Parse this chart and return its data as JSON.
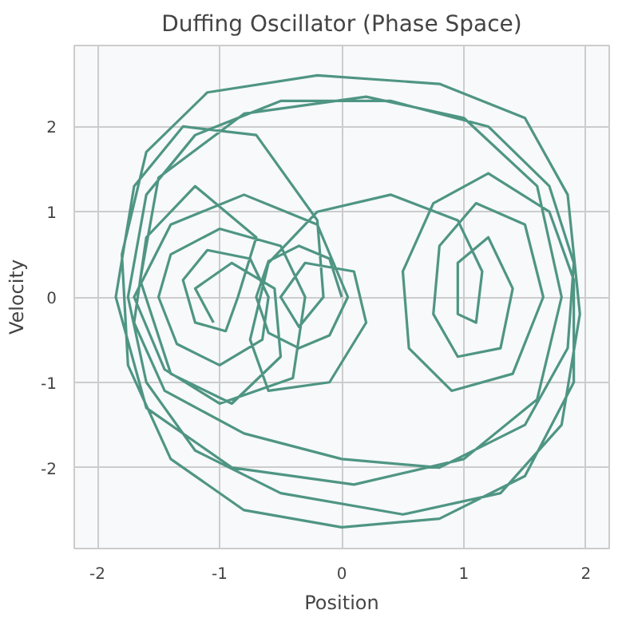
{
  "chart_data": {
    "type": "line",
    "title": "Duffing Oscillator (Phase Space)",
    "xlabel": "Position",
    "ylabel": "Velocity",
    "xlim": [
      -2.19,
      2.19
    ],
    "ylim": [
      -2.95,
      2.95
    ],
    "xticks": [
      -2,
      -1,
      0,
      1,
      2
    ],
    "yticks": [
      -2,
      -1,
      0,
      1,
      2
    ],
    "grid": true,
    "series": [
      {
        "color": "#4f9583",
        "x": [
          0,
          -0.1,
          -0.35,
          -0.6,
          -0.7,
          -0.6,
          -0.35,
          -0.1,
          0.05,
          -0.2,
          -0.8,
          -1.4,
          -1.7,
          -1.45,
          -1.0,
          -0.4,
          -0.3,
          -0.5,
          -1.0,
          -1.4,
          -1.5,
          -1.35,
          -1.0,
          -0.65,
          -0.6,
          -0.75,
          -1.1,
          -1.3,
          -1.2,
          -0.95,
          -0.85,
          -0.7,
          -1.2,
          -1.6,
          -1.7,
          -1.45,
          -0.8,
          0,
          0.8,
          1.5,
          1.85,
          1.9,
          1.7,
          1.2,
          0.4,
          -0.5,
          -1.2,
          -1.6,
          -1.75,
          -1.6,
          -1.2,
          -0.5,
          0.5,
          1.3,
          1.8,
          1.95,
          1.85,
          1.5,
          0.8,
          -0.2,
          -1.1,
          -1.6,
          -1.8,
          -1.75,
          -1.4,
          -0.8,
          0,
          0.8,
          1.5,
          1.9,
          1.9,
          1.7,
          1.2,
          0.75,
          0.5,
          0.55,
          0.9,
          1.4,
          1.65,
          1.5,
          1.1,
          0.8,
          0.75,
          0.95,
          1.3,
          1.4,
          1.2,
          0.95,
          0.95,
          1.1,
          1.15,
          0.95,
          0.4,
          -0.2,
          -0.6,
          -0.75,
          -0.6,
          -0.1,
          0.2,
          0.1,
          -0.3,
          -0.5,
          -0.35,
          -0.15,
          -0.2,
          -0.7,
          -1.3,
          -1.7,
          -1.85,
          -1.6,
          -0.9,
          0.1,
          1.0,
          1.6,
          1.8,
          1.6,
          1.0,
          0.2,
          -0.8,
          -1.5,
          -1.65,
          -1.4,
          -0.9,
          -0.5,
          -0.55,
          -0.9,
          -1.2,
          -1.05
        ],
        "values": [
          0,
          0.45,
          0.6,
          0.42,
          0,
          -0.42,
          -0.6,
          -0.45,
          0,
          0.85,
          1.2,
          0.85,
          0,
          -0.85,
          -1.25,
          -0.95,
          0,
          0.6,
          0.8,
          0.5,
          0,
          -0.55,
          -0.8,
          -0.5,
          0,
          0.45,
          0.55,
          0.2,
          -0.3,
          -0.4,
          0,
          0.7,
          1.3,
          0.7,
          -0.3,
          -1.1,
          -1.6,
          -1.9,
          -2.0,
          -1.5,
          -0.6,
          0.4,
          1.3,
          2.0,
          2.3,
          2.3,
          1.9,
          1.2,
          0,
          -1.0,
          -1.8,
          -2.3,
          -2.55,
          -2.3,
          -1.5,
          -0.2,
          1.2,
          2.1,
          2.5,
          2.6,
          2.4,
          1.7,
          0.5,
          -0.8,
          -1.9,
          -2.5,
          -2.7,
          -2.6,
          -2.1,
          -1.0,
          0.2,
          1.0,
          1.45,
          1.1,
          0.3,
          -0.6,
          -1.1,
          -0.9,
          0,
          0.85,
          1.1,
          0.6,
          -0.2,
          -0.7,
          -0.6,
          0.1,
          0.7,
          0.4,
          -0.2,
          -0.3,
          0.3,
          0.9,
          1.2,
          1.0,
          0.4,
          -0.5,
          -1.1,
          -1.0,
          -0.3,
          0.3,
          0.4,
          0,
          -0.35,
          0,
          0.9,
          1.9,
          2.0,
          1.3,
          0,
          -1.3,
          -2.0,
          -2.2,
          -1.9,
          -1.2,
          0,
          1.3,
          2.1,
          2.35,
          2.15,
          1.4,
          0.2,
          -0.9,
          -1.25,
          -0.7,
          0.1,
          0.4,
          0.1,
          -0.3
        ]
      }
    ]
  }
}
